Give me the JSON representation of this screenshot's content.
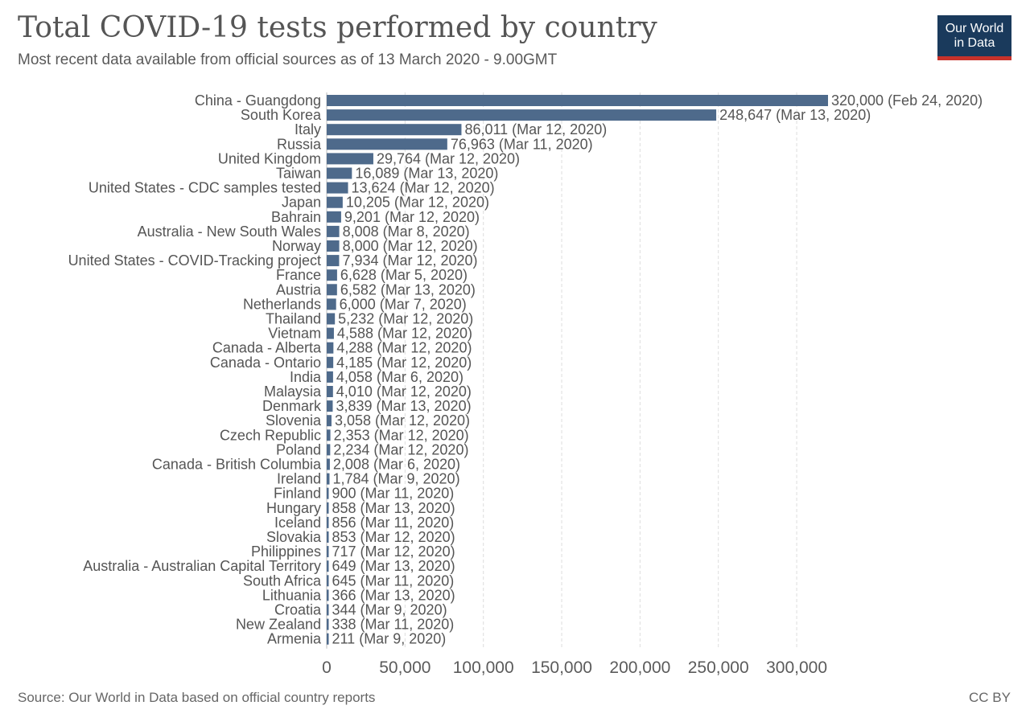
{
  "header": {
    "title": "Total COVID-19 tests performed by country",
    "subtitle": "Most recent data available from official sources as of 13 March 2020 - 9.00GMT"
  },
  "logo": {
    "line1": "Our World",
    "line2": "in Data"
  },
  "footer": {
    "source": "Source: Our World in Data based on official country reports",
    "license": "CC BY"
  },
  "colors": {
    "bar": "#4e6a8b",
    "grid": "#dddddd",
    "axis_text": "#5b5b5b",
    "label_text": "#555555"
  },
  "chart_data": {
    "type": "bar",
    "orientation": "horizontal",
    "title": "Total COVID-19 tests performed by country",
    "xlim": [
      0,
      320000
    ],
    "xticks": [
      0,
      50000,
      100000,
      150000,
      200000,
      250000,
      300000
    ],
    "xtick_labels": [
      "0",
      "50,000",
      "100,000",
      "150,000",
      "200,000",
      "250,000",
      "300,000"
    ],
    "grid": "vertical dashed",
    "categories": [
      "China - Guangdong",
      "South Korea",
      "Italy",
      "Russia",
      "United Kingdom",
      "Taiwan",
      "United States - CDC samples tested",
      "Japan",
      "Bahrain",
      "Australia - New South Wales",
      "Norway",
      "United States - COVID-Tracking project",
      "France",
      "Austria",
      "Netherlands",
      "Thailand",
      "Vietnam",
      "Canada - Alberta",
      "Canada - Ontario",
      "India",
      "Malaysia",
      "Denmark",
      "Slovenia",
      "Czech Republic",
      "Poland",
      "Canada - British Columbia",
      "Ireland",
      "Finland",
      "Hungary",
      "Iceland",
      "Slovakia",
      "Philippines",
      "Australia - Australian Capital Territory",
      "South Africa",
      "Lithuania",
      "Croatia",
      "New Zealand",
      "Armenia"
    ],
    "values": [
      320000,
      248647,
      86011,
      76963,
      29764,
      16089,
      13624,
      10205,
      9201,
      8008,
      8000,
      7934,
      6628,
      6582,
      6000,
      5232,
      4588,
      4288,
      4185,
      4058,
      4010,
      3839,
      3058,
      2353,
      2234,
      2008,
      1784,
      900,
      858,
      856,
      853,
      717,
      649,
      645,
      366,
      344,
      338,
      211
    ],
    "value_labels": [
      "320,000 (Feb 24, 2020)",
      "248,647 (Mar 13, 2020)",
      "86,011 (Mar 12, 2020)",
      "76,963 (Mar 11, 2020)",
      "29,764 (Mar 12, 2020)",
      "16,089 (Mar 13, 2020)",
      "13,624 (Mar 12, 2020)",
      "10,205 (Mar 12, 2020)",
      "9,201 (Mar 12, 2020)",
      "8,008 (Mar 8, 2020)",
      "8,000 (Mar 12, 2020)",
      "7,934 (Mar 12, 2020)",
      "6,628 (Mar 5, 2020)",
      "6,582 (Mar 13, 2020)",
      "6,000 (Mar 7, 2020)",
      "5,232 (Mar 12, 2020)",
      "4,588 (Mar 12, 2020)",
      "4,288 (Mar 12, 2020)",
      "4,185 (Mar 12, 2020)",
      "4,058 (Mar 6, 2020)",
      "4,010 (Mar 12, 2020)",
      "3,839 (Mar 13, 2020)",
      "3,058 (Mar 12, 2020)",
      "2,353 (Mar 12, 2020)",
      "2,234 (Mar 12, 2020)",
      "2,008 (Mar 6, 2020)",
      "1,784 (Mar 9, 2020)",
      "900 (Mar 11, 2020)",
      "858 (Mar 13, 2020)",
      "856 (Mar 11, 2020)",
      "853 (Mar 12, 2020)",
      "717 (Mar 12, 2020)",
      "649 (Mar 13, 2020)",
      "645 (Mar 11, 2020)",
      "366 (Mar 13, 2020)",
      "344 (Mar 9, 2020)",
      "338 (Mar 11, 2020)",
      "211 (Mar 9, 2020)"
    ]
  }
}
